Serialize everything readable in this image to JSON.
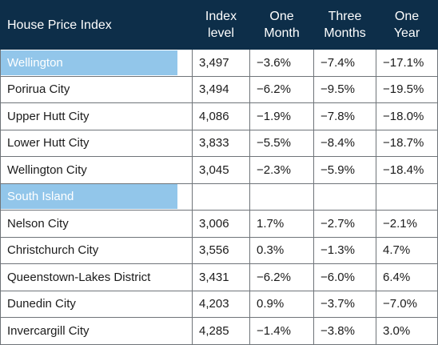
{
  "table": {
    "header": {
      "title": "House Price Index",
      "index_line1": "Index",
      "index_line2": "level",
      "one_month_line1": "One",
      "one_month_line2": "Month",
      "three_months_line1": "Three",
      "three_months_line2": "Months",
      "one_year_line1": "One",
      "one_year_line2": "Year"
    },
    "sections": [
      {
        "label": "Wellington",
        "index": "3,497",
        "one_month": "−3.6%",
        "three_months": "−7.4%",
        "one_year": "−17.1%",
        "rows": [
          {
            "name": "Porirua City",
            "index": "3,494",
            "one_month": "−6.2%",
            "three_months": "−9.5%",
            "one_year": "−19.5%"
          },
          {
            "name": "Upper Hutt City",
            "index": "4,086",
            "one_month": "−1.9%",
            "three_months": "−7.8%",
            "one_year": "−18.0%"
          },
          {
            "name": "Lower Hutt City",
            "index": "3,833",
            "one_month": "−5.5%",
            "three_months": "−8.4%",
            "one_year": "−18.7%"
          },
          {
            "name": "Wellington City",
            "index": "3,045",
            "one_month": "−2.3%",
            "three_months": "−5.9%",
            "one_year": "−18.4%"
          }
        ]
      },
      {
        "label": "South Island",
        "rows": [
          {
            "name": "Nelson City",
            "index": "3,006",
            "one_month": "1.7%",
            "three_months": "−2.7%",
            "one_year": "−2.1%"
          },
          {
            "name": "Christchurch City",
            "index": "3,556",
            "one_month": "0.3%",
            "three_months": "−1.3%",
            "one_year": "4.7%"
          },
          {
            "name": "Queenstown-Lakes District",
            "index": "3,431",
            "one_month": "−6.2%",
            "three_months": "−6.0%",
            "one_year": "6.4%"
          },
          {
            "name": "Dunedin City",
            "index": "4,203",
            "one_month": "0.9%",
            "three_months": "−3.7%",
            "one_year": "−7.0%"
          },
          {
            "name": "Invercargill City",
            "index": "4,285",
            "one_month": "−1.4%",
            "three_months": "−3.8%",
            "one_year": "3.0%"
          }
        ]
      }
    ]
  }
}
